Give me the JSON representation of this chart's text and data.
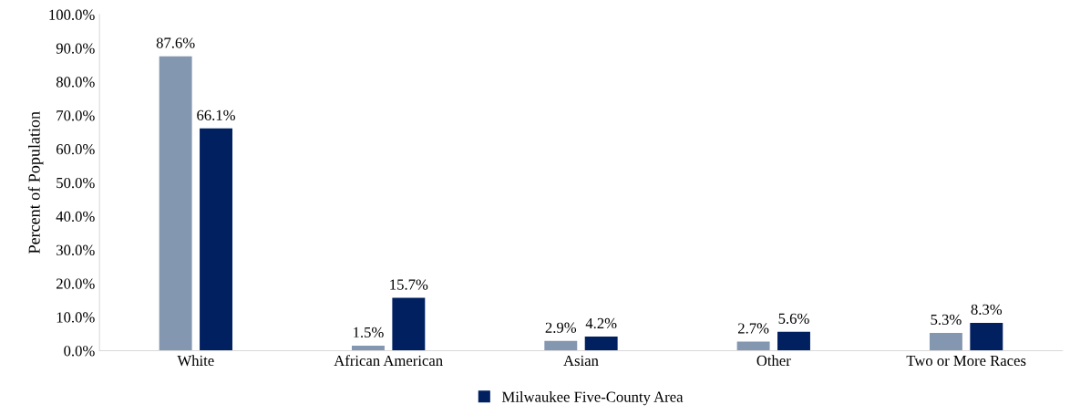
{
  "chart_data": {
    "type": "bar",
    "ylabel": "Percent of Population",
    "categories": [
      "White",
      "African American",
      "Asian",
      "Other",
      "Two or More Races"
    ],
    "series": [
      {
        "color": "#8497b0",
        "values": [
          87.6,
          1.5,
          2.9,
          2.7,
          5.3
        ],
        "value_labels": [
          "87.6%",
          "1.5%",
          "2.9%",
          "2.7%",
          "5.3%"
        ]
      },
      {
        "name": "Milwaukee Five-County Area",
        "color": "#002060",
        "values": [
          66.1,
          15.7,
          4.2,
          5.6,
          8.3
        ],
        "value_labels": [
          "66.1%",
          "15.7%",
          "4.2%",
          "5.6%",
          "8.3%"
        ]
      }
    ],
    "ylim": [
      0,
      100
    ],
    "yticks": [
      {
        "value": 0,
        "label": "0.0%"
      },
      {
        "value": 10,
        "label": "10.0%"
      },
      {
        "value": 20,
        "label": "20.0%"
      },
      {
        "value": 30,
        "label": "30.0%"
      },
      {
        "value": 40,
        "label": "40.0%"
      },
      {
        "value": 50,
        "label": "50.0%"
      },
      {
        "value": 60,
        "label": "60.0%"
      },
      {
        "value": 70,
        "label": "70.0%"
      },
      {
        "value": 80,
        "label": "80.0%"
      },
      {
        "value": 90,
        "label": "90.0%"
      },
      {
        "value": 100,
        "label": "100.0%"
      }
    ],
    "grid": false,
    "legend": "bottom"
  }
}
